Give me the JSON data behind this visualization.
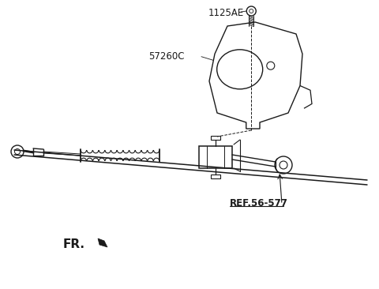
{
  "bg_color": "#ffffff",
  "line_color": "#1a1a1a",
  "label_1125AE": "1125AE",
  "label_57260C": "57260C",
  "label_ref": "REF.56-577",
  "label_fr": "FR.",
  "figsize": [
    4.8,
    3.66
  ],
  "dpi": 100,
  "imw": 480,
  "imh": 366
}
